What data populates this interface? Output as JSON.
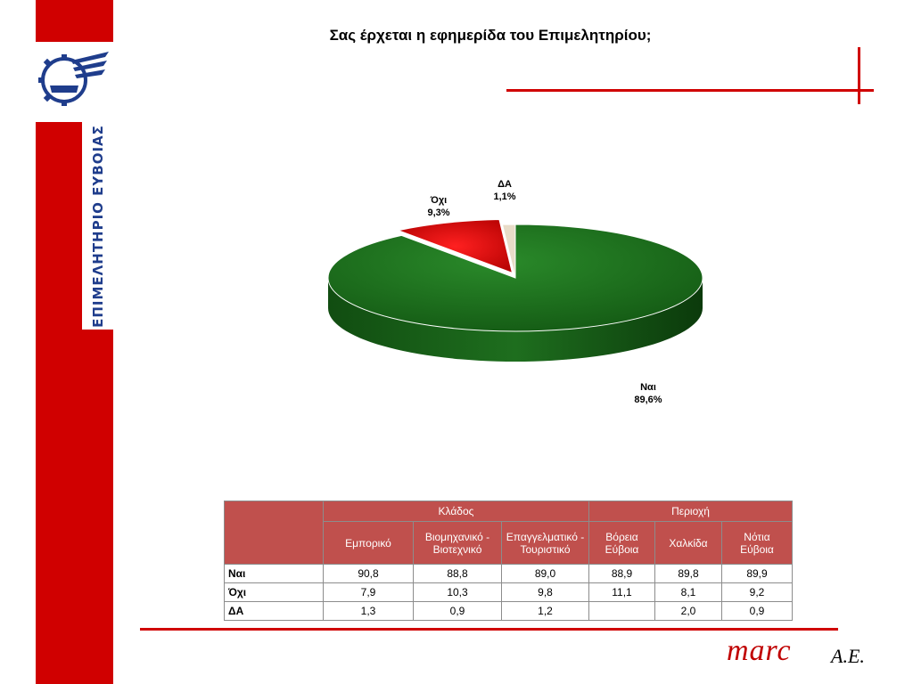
{
  "title": "Σας έρχεται η εφημερίδα του Επιμελητηρίου;",
  "brand": {
    "vertical_text": "ΕΠΙΜΕΛΗΤΗΡΙΟ ΕΥΒΟΙΑΣ",
    "logo_icon": "chamber-gear-logo-icon",
    "footer_name": "marc",
    "footer_suffix": "A.E."
  },
  "colors": {
    "accent": "#d00000",
    "header": "#c0504d",
    "yes": "#1e6e1e",
    "no": "#d40000",
    "na": "#e8dcc8"
  },
  "chart_data": {
    "type": "pie",
    "title": "Σας έρχεται η εφημερίδα του Επιμελητηρίου;",
    "slices": [
      {
        "label": "Ναι",
        "value": 89.6,
        "text": "89,6%"
      },
      {
        "label": "Όχι",
        "value": 9.3,
        "text": "9,3%"
      },
      {
        "label": "ΔΑ",
        "value": 1.1,
        "text": "1,1%"
      }
    ]
  },
  "table": {
    "groups": [
      "Κλάδος",
      "Περιοχή"
    ],
    "columns": [
      "Εμπορικό",
      "Βιομηχανικό - Βιοτεχνικό",
      "Επαγγελματικό - Τουριστικό",
      "Βόρεια Εύβοια",
      "Χαλκίδα",
      "Νότια Εύβοια"
    ],
    "rows": [
      {
        "label": "Ναι",
        "values": [
          "90,8",
          "88,8",
          "89,0",
          "88,9",
          "89,8",
          "89,9"
        ]
      },
      {
        "label": "Όχι",
        "values": [
          "7,9",
          "10,3",
          "9,8",
          "11,1",
          "8,1",
          "9,2"
        ]
      },
      {
        "label": "ΔΑ",
        "values": [
          "1,3",
          "0,9",
          "1,2",
          "",
          "2,0",
          "0,9"
        ]
      }
    ]
  }
}
